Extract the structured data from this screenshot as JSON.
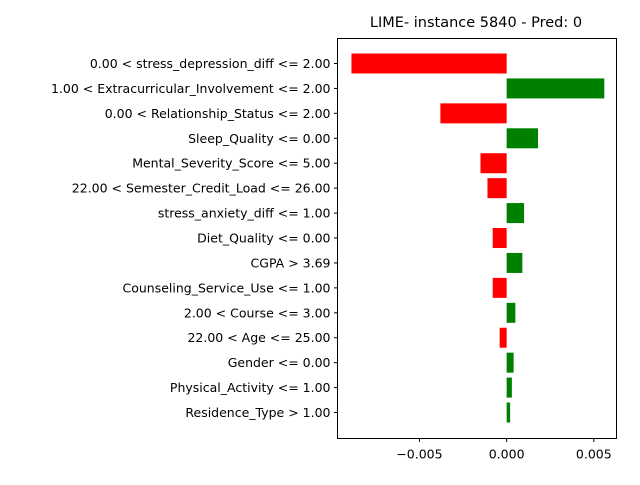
{
  "chart_data": {
    "type": "bar",
    "orientation": "horizontal",
    "title": "LIME- instance 5840 - Pred: 0",
    "xlabel": "",
    "ylabel": "",
    "xlim": [
      -0.0097,
      0.0063
    ],
    "xticks": [
      -0.005,
      0.0,
      0.005
    ],
    "xtick_labels": [
      "−0.005",
      "0.000",
      "0.005"
    ],
    "grid": false,
    "legend": "none",
    "colors": {
      "positive": "#008000",
      "negative": "#ff0000"
    },
    "categories": [
      "0.00 < stress_depression_diff <= 2.00",
      "1.00 < Extracurricular_Involvement <= 2.00",
      "0.00 < Relationship_Status <= 2.00",
      "Sleep_Quality <= 0.00",
      "Mental_Severity_Score <= 5.00",
      "22.00 < Semester_Credit_Load <= 26.00",
      "stress_anxiety_diff <= 1.00",
      "Diet_Quality <= 0.00",
      "CGPA > 3.69",
      "Counseling_Service_Use <= 1.00",
      "2.00 < Course <= 3.00",
      "22.00 < Age <= 25.00",
      "Gender <= 0.00",
      "Physical_Activity <= 1.00",
      "Residence_Type > 1.00"
    ],
    "values": [
      -0.0089,
      0.0056,
      -0.0038,
      0.0018,
      -0.0015,
      -0.0011,
      0.001,
      -0.0008,
      0.0009,
      -0.0008,
      0.0005,
      -0.0004,
      0.0004,
      0.0003,
      0.0002
    ]
  }
}
